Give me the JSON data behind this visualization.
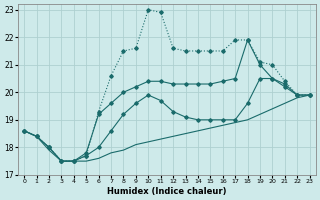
{
  "xlabel": "Humidex (Indice chaleur)",
  "xlim": [
    -0.5,
    23.5
  ],
  "ylim": [
    17,
    23.2
  ],
  "yticks": [
    17,
    18,
    19,
    20,
    21,
    22,
    23
  ],
  "xticks": [
    0,
    1,
    2,
    3,
    4,
    5,
    6,
    7,
    8,
    9,
    10,
    11,
    12,
    13,
    14,
    15,
    16,
    17,
    18,
    19,
    20,
    21,
    22,
    23
  ],
  "bg_color": "#ceeaea",
  "grid_color": "#aed0d0",
  "line_color": "#1a6b6b",
  "line1_x": [
    0,
    1,
    2,
    3,
    4,
    5,
    6,
    7,
    8,
    9,
    10,
    11,
    12,
    13,
    14,
    15,
    16,
    17,
    18,
    19,
    20,
    21,
    22,
    23
  ],
  "line1_y": [
    18.6,
    18.4,
    17.9,
    17.5,
    17.5,
    17.5,
    17.6,
    17.8,
    17.9,
    18.1,
    18.2,
    18.3,
    18.4,
    18.5,
    18.6,
    18.7,
    18.8,
    18.9,
    19.0,
    19.2,
    19.4,
    19.6,
    19.8,
    19.9
  ],
  "line2_x": [
    0,
    1,
    2,
    3,
    4,
    5,
    6,
    7,
    8,
    9,
    10,
    11,
    12,
    13,
    14,
    15,
    16,
    17,
    18,
    19,
    20,
    21,
    22,
    23
  ],
  "line2_y": [
    18.6,
    18.4,
    18.0,
    17.5,
    17.5,
    17.7,
    18.0,
    18.6,
    19.2,
    19.6,
    19.9,
    19.7,
    19.3,
    19.1,
    19.0,
    19.0,
    19.0,
    19.0,
    19.6,
    20.5,
    20.5,
    20.3,
    19.9,
    19.9
  ],
  "line3_x": [
    0,
    1,
    2,
    3,
    4,
    5,
    6,
    7,
    8,
    9,
    10,
    11,
    12,
    13,
    14,
    15,
    16,
    17,
    18,
    19,
    20,
    21,
    22,
    23
  ],
  "line3_y": [
    18.6,
    18.4,
    18.0,
    17.5,
    17.5,
    17.8,
    19.2,
    19.6,
    20.0,
    20.2,
    20.4,
    20.4,
    20.3,
    20.3,
    20.3,
    20.3,
    20.4,
    20.5,
    21.9,
    21.0,
    20.5,
    20.2,
    19.9,
    19.9
  ],
  "line4_x": [
    0,
    1,
    2,
    3,
    4,
    5,
    6,
    7,
    8,
    9,
    10,
    11,
    12,
    13,
    14,
    15,
    16,
    17,
    18,
    19,
    20,
    21,
    22,
    23
  ],
  "line4_y": [
    18.6,
    18.4,
    18.0,
    17.5,
    17.5,
    17.7,
    19.3,
    20.6,
    21.5,
    21.6,
    23.0,
    22.9,
    21.6,
    21.5,
    21.5,
    21.5,
    21.5,
    21.9,
    21.9,
    21.1,
    21.0,
    20.4,
    19.9,
    19.9
  ]
}
